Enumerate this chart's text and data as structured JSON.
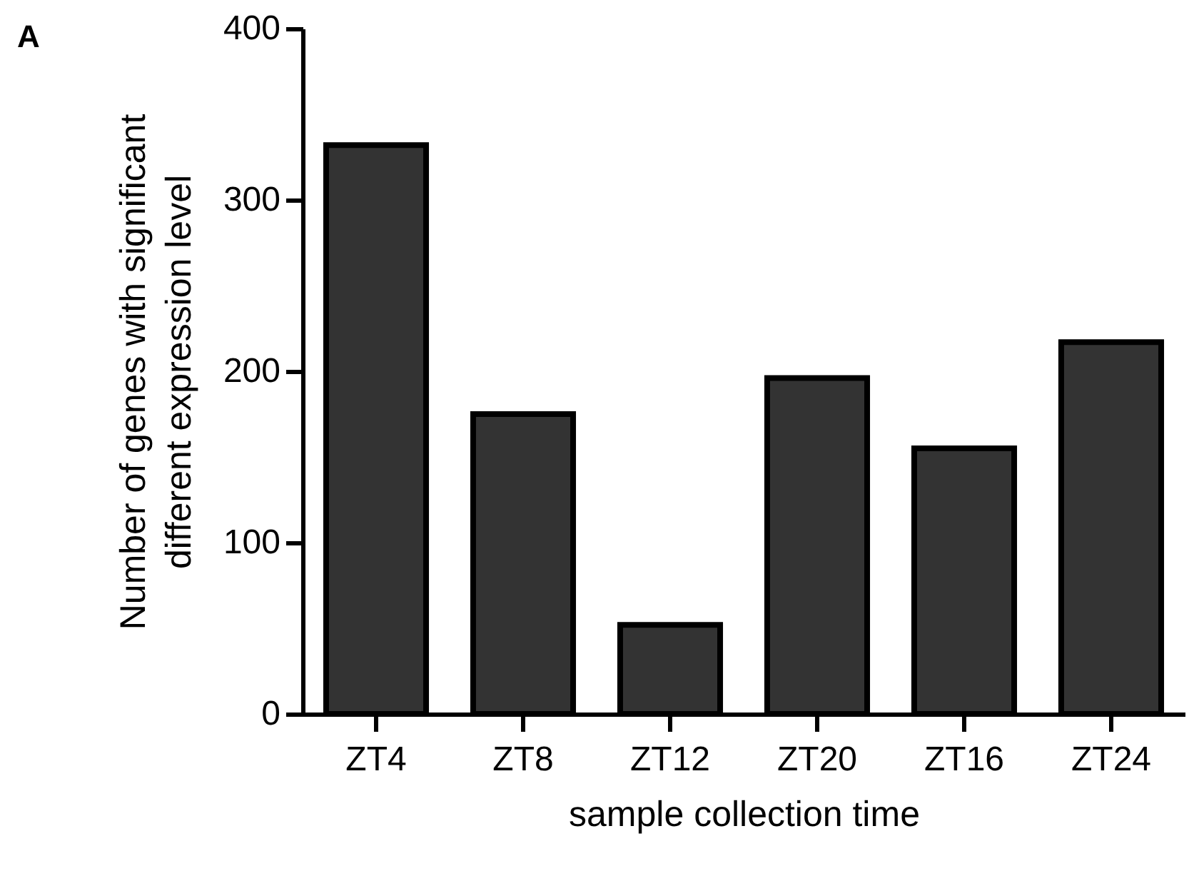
{
  "chart_data": {
    "type": "bar",
    "xlabel": "sample collection time",
    "ylabel": "Number of genes with significant\ndifferent expression level",
    "annotations": [
      "A"
    ],
    "categories": [
      "ZT4",
      "ZT8",
      "ZT12",
      "ZT20",
      "ZT16",
      "ZT24"
    ],
    "values": [
      332,
      175,
      52,
      196,
      155,
      217
    ],
    "color": "#333333",
    "ylim": [
      0,
      400
    ],
    "yticks": [
      0,
      100,
      200,
      300,
      400
    ],
    "grid": false
  }
}
